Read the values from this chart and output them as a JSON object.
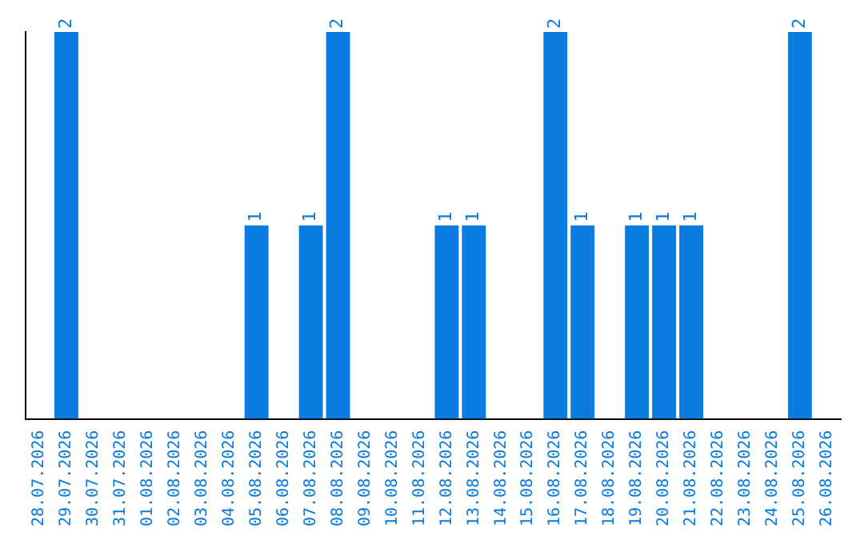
{
  "chart_data": {
    "type": "bar",
    "categories": [
      "28.07.2026",
      "29.07.2026",
      "30.07.2026",
      "31.07.2026",
      "01.08.2026",
      "02.08.2026",
      "03.08.2026",
      "04.08.2026",
      "05.08.2026",
      "06.08.2026",
      "07.08.2026",
      "08.08.2026",
      "09.08.2026",
      "10.08.2026",
      "11.08.2026",
      "12.08.2026",
      "13.08.2026",
      "14.08.2026",
      "15.08.2026",
      "16.08.2026",
      "17.08.2026",
      "18.08.2026",
      "19.08.2026",
      "20.08.2026",
      "21.08.2026",
      "22.08.2026",
      "23.08.2026",
      "24.08.2026",
      "25.08.2026",
      "26.08.2026"
    ],
    "values": [
      0,
      2,
      0,
      0,
      0,
      0,
      0,
      0,
      1,
      0,
      1,
      2,
      0,
      0,
      0,
      1,
      1,
      0,
      0,
      2,
      1,
      0,
      1,
      1,
      1,
      0,
      0,
      0,
      2,
      0
    ],
    "value_labels": [
      null,
      "2",
      null,
      null,
      null,
      null,
      null,
      null,
      "1",
      null,
      "1",
      "2",
      null,
      null,
      null,
      "1",
      "1",
      null,
      null,
      "2",
      "1",
      null,
      "1",
      "1",
      "1",
      null,
      null,
      null,
      "2",
      null
    ],
    "color": "#0a7be0",
    "grid": false,
    "legend": false,
    "tick_labels": "x"
  }
}
